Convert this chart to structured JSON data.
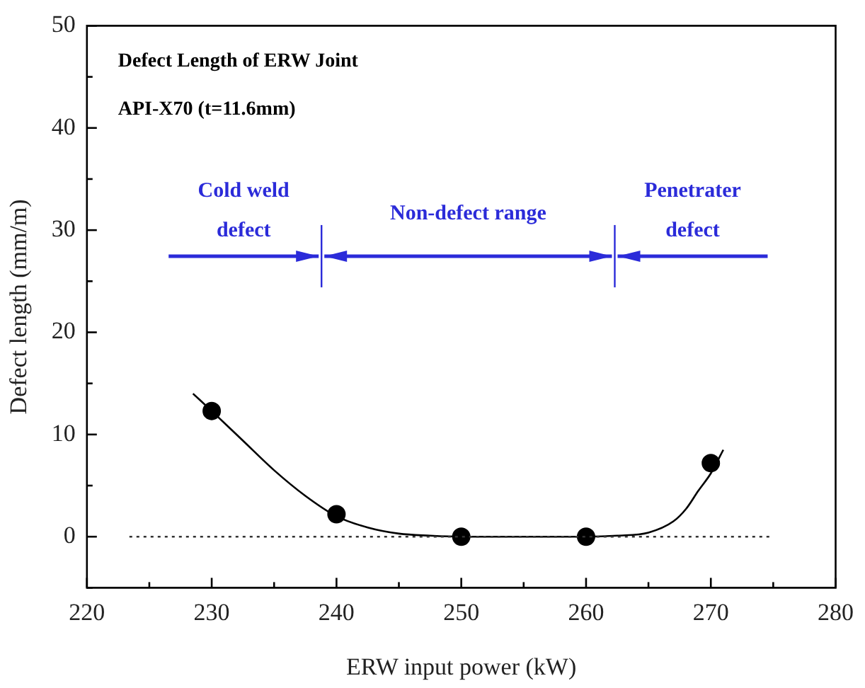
{
  "chart_data": {
    "type": "scatter",
    "title": "Defect Length of ERW Joint",
    "subtitle": "API-X70 (t=11.6mm)",
    "xlabel": "ERW input power (kW)",
    "ylabel": "Defect length (mm/m)",
    "xlim": [
      220,
      280
    ],
    "ylim": [
      -5,
      50
    ],
    "xticks": [
      220,
      {
        "value": 225,
        "label": null
      },
      230,
      {
        "value": 235,
        "label": null
      },
      240,
      {
        "value": 245,
        "label": null
      },
      250,
      {
        "value": 255,
        "label": null
      },
      260,
      {
        "value": 265,
        "label": null
      },
      270,
      {
        "value": 275,
        "label": null
      },
      280
    ],
    "yticks": [
      {
        "value": -5,
        "label": null
      },
      0,
      {
        "value": 5,
        "label": null
      },
      10,
      {
        "value": 15,
        "label": null
      },
      20,
      {
        "value": 25,
        "label": null
      },
      30,
      {
        "value": 35,
        "label": null
      },
      40,
      {
        "value": 45,
        "label": null
      },
      50
    ],
    "grid": false,
    "legend": false,
    "series": [
      {
        "color": "#000000",
        "marker": "circle",
        "x": [
          230,
          240,
          250,
          260,
          270
        ],
        "values": [
          12.3,
          2.2,
          0,
          0,
          7.2
        ]
      },
      {
        "type": "line",
        "color": "#000000",
        "marker": "none",
        "line_style": "solid",
        "x": [
          228.5,
          230,
          232.5,
          235,
          237.5,
          240,
          242.5,
          245,
          247.5,
          250,
          255,
          260,
          262.5,
          265,
          267,
          268,
          269,
          270,
          271
        ],
        "values": [
          14,
          12.3,
          9.4,
          6.5,
          4,
          2,
          0.9,
          0.3,
          0.1,
          0,
          0,
          0,
          0.1,
          0.4,
          1.5,
          2.7,
          4.5,
          6.2,
          8.5
        ]
      }
    ],
    "ref_lines": [
      {
        "axis": "y",
        "value": 0,
        "color": "#333333",
        "line_style": "dotted"
      },
      {
        "axis": "x",
        "value": 238.8,
        "color": "#2b2bd9",
        "line_style": "solid"
      },
      {
        "axis": "x",
        "value": 262.3,
        "color": "#2b2bd9",
        "line_style": "solid"
      }
    ],
    "annotations": [
      "Cold weld\ndefect",
      "Non-defect range",
      "Penetrater\ndefect"
    ]
  }
}
